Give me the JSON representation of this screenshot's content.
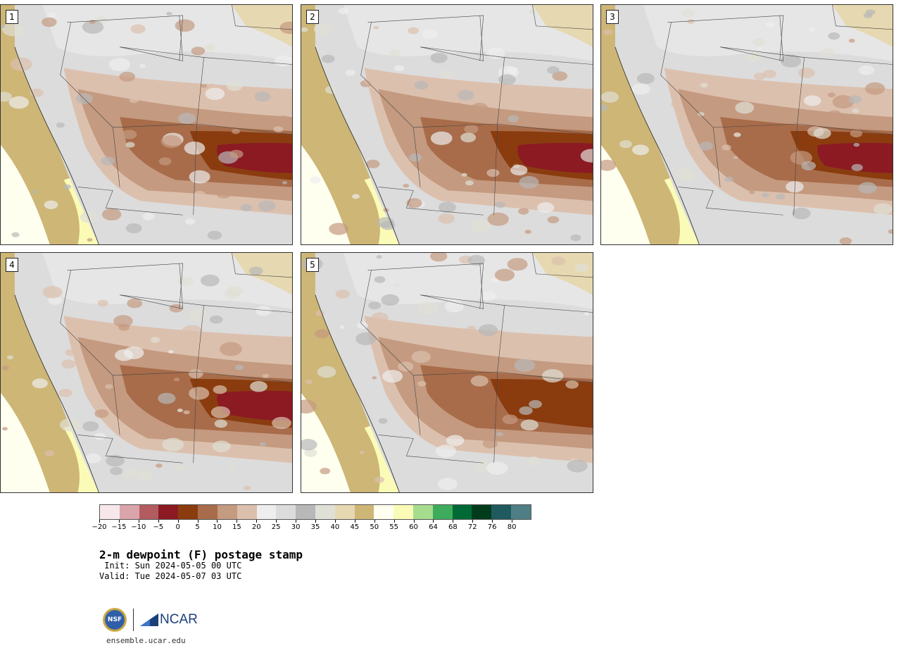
{
  "panels": [
    {
      "label": "1"
    },
    {
      "label": "2"
    },
    {
      "label": "3"
    },
    {
      "label": "4"
    },
    {
      "label": "5"
    }
  ],
  "colorbar": {
    "colors": [
      "#f6e8ea",
      "#d9a4aa",
      "#b25c62",
      "#8b1a23",
      "#8a3c0f",
      "#a86c4a",
      "#c49a80",
      "#dcc0ae",
      "#eeeeee",
      "#dcdcdc",
      "#b8b8b8",
      "#e0e0d6",
      "#e6d8b0",
      "#cdb676",
      "#fffff0",
      "#fbfbb8",
      "#a6dc8e",
      "#3dac5c",
      "#006a36",
      "#003c1c",
      "#1f5a5e",
      "#4f7f84"
    ],
    "ticks": [
      "−20",
      "−15",
      "−10",
      "−5",
      "0",
      "5",
      "10",
      "15",
      "20",
      "25",
      "30",
      "35",
      "40",
      "45",
      "50",
      "55",
      "60",
      "64",
      "68",
      "72",
      "76",
      "80"
    ]
  },
  "title": "2-m dewpoint (F) postage stamp",
  "init": " Init: Sun 2024-05-05 00 UTC",
  "valid": "Valid: Tue 2024-05-07 03 UTC",
  "logo": {
    "nsf": "NSF",
    "ncar": "NCAR",
    "url": "ensemble.ucar.edu"
  }
}
